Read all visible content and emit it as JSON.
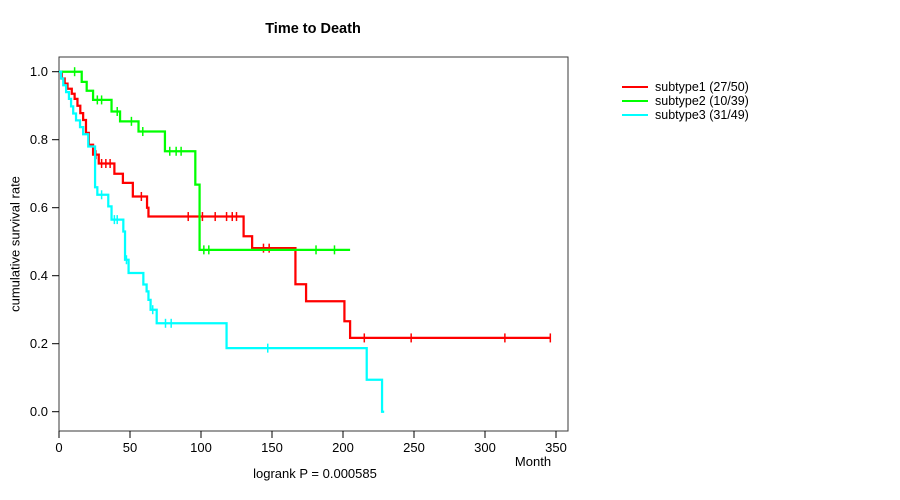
{
  "page": {
    "background": "#ffffff"
  },
  "chart_data": {
    "type": "line",
    "variant": "kaplan-meier-step",
    "title": "Time to Death",
    "ylabel": "cumulative survival rate",
    "xlabel": "Month",
    "annotation": "logrank P = 0.000585",
    "x_ticks": [
      0,
      50,
      100,
      150,
      200,
      250,
      300,
      350
    ],
    "y_ticks": [
      0.0,
      0.2,
      0.4,
      0.6,
      0.8,
      1.0
    ],
    "y_tick_labels": [
      "0.0",
      "0.2",
      "0.4",
      "0.6",
      "0.8",
      "1.0"
    ],
    "xlim": [
      0,
      358
    ],
    "ylim": [
      0,
      1
    ],
    "grid": false,
    "frame": true,
    "legend_position": "right-outside",
    "series": [
      {
        "id": "subtype1",
        "name": "subtype1 (27/50)",
        "color": "#ff0000",
        "steps": [
          [
            0,
            1.0
          ],
          [
            2,
            0.98
          ],
          [
            4,
            0.965
          ],
          [
            6,
            0.95
          ],
          [
            9,
            0.935
          ],
          [
            11,
            0.92
          ],
          [
            13,
            0.9
          ],
          [
            15,
            0.878
          ],
          [
            17,
            0.858
          ],
          [
            19,
            0.82
          ],
          [
            21,
            0.785
          ],
          [
            24,
            0.756
          ],
          [
            28,
            0.73
          ],
          [
            39,
            0.7
          ],
          [
            45,
            0.673
          ],
          [
            52,
            0.633
          ],
          [
            62,
            0.6
          ],
          [
            63,
            0.574
          ],
          [
            130,
            0.516
          ],
          [
            136,
            0.481
          ],
          [
            166.5,
            0.375
          ],
          [
            174,
            0.325
          ],
          [
            201,
            0.266
          ],
          [
            205,
            0.217
          ]
        ],
        "end": 346,
        "censors": [
          [
            26,
            0.756
          ],
          [
            30,
            0.73
          ],
          [
            33,
            0.73
          ],
          [
            36,
            0.73
          ],
          [
            58,
            0.633
          ],
          [
            91,
            0.574
          ],
          [
            101,
            0.574
          ],
          [
            110,
            0.574
          ],
          [
            118,
            0.574
          ],
          [
            122,
            0.574
          ],
          [
            125,
            0.574
          ],
          [
            144,
            0.481
          ],
          [
            148,
            0.481
          ],
          [
            215,
            0.217
          ],
          [
            248,
            0.217
          ],
          [
            314,
            0.217
          ],
          [
            346,
            0.217
          ]
        ]
      },
      {
        "id": "subtype2",
        "name": "subtype2 (10/39)",
        "color": "#00ff00",
        "steps": [
          [
            0,
            1.0
          ],
          [
            16,
            0.97
          ],
          [
            19.5,
            0.944
          ],
          [
            24,
            0.917
          ],
          [
            37,
            0.883
          ],
          [
            43,
            0.854
          ],
          [
            56,
            0.824
          ],
          [
            74.6,
            0.766
          ],
          [
            96,
            0.668
          ],
          [
            99,
            0.476
          ]
        ],
        "end": 205,
        "censors": [
          [
            11,
            1.0
          ],
          [
            27,
            0.917
          ],
          [
            30,
            0.917
          ],
          [
            41,
            0.883
          ],
          [
            51,
            0.854
          ],
          [
            59,
            0.824
          ],
          [
            78,
            0.766
          ],
          [
            82.5,
            0.766
          ],
          [
            86,
            0.766
          ],
          [
            102,
            0.476
          ],
          [
            105.5,
            0.476
          ],
          [
            181,
            0.476
          ],
          [
            194,
            0.476
          ]
        ]
      },
      {
        "id": "subtype3",
        "name": "subtype3 (31/49)",
        "color": "#00ffff",
        "steps": [
          [
            0,
            1.0
          ],
          [
            1.5,
            0.98
          ],
          [
            3,
            0.96
          ],
          [
            5,
            0.94
          ],
          [
            7,
            0.92
          ],
          [
            8.5,
            0.898
          ],
          [
            10,
            0.877
          ],
          [
            12,
            0.857
          ],
          [
            14.8,
            0.837
          ],
          [
            17,
            0.816
          ],
          [
            20.6,
            0.78
          ],
          [
            25.4,
            0.66
          ],
          [
            27,
            0.638
          ],
          [
            34.7,
            0.604
          ],
          [
            37,
            0.565
          ],
          [
            45.3,
            0.53
          ],
          [
            46.5,
            0.447
          ],
          [
            49,
            0.408
          ],
          [
            59.4,
            0.374
          ],
          [
            61.7,
            0.354
          ],
          [
            63,
            0.329
          ],
          [
            64.5,
            0.3
          ],
          [
            68.8,
            0.26
          ],
          [
            118,
            0.187
          ],
          [
            216.7,
            0.094
          ],
          [
            227.5,
            0.0
          ]
        ],
        "end": 229,
        "censors": [
          [
            30,
            0.638
          ],
          [
            39,
            0.565
          ],
          [
            41,
            0.565
          ],
          [
            47.5,
            0.447
          ],
          [
            66,
            0.3
          ],
          [
            75,
            0.26
          ],
          [
            79,
            0.26
          ],
          [
            147,
            0.187
          ]
        ]
      }
    ]
  }
}
